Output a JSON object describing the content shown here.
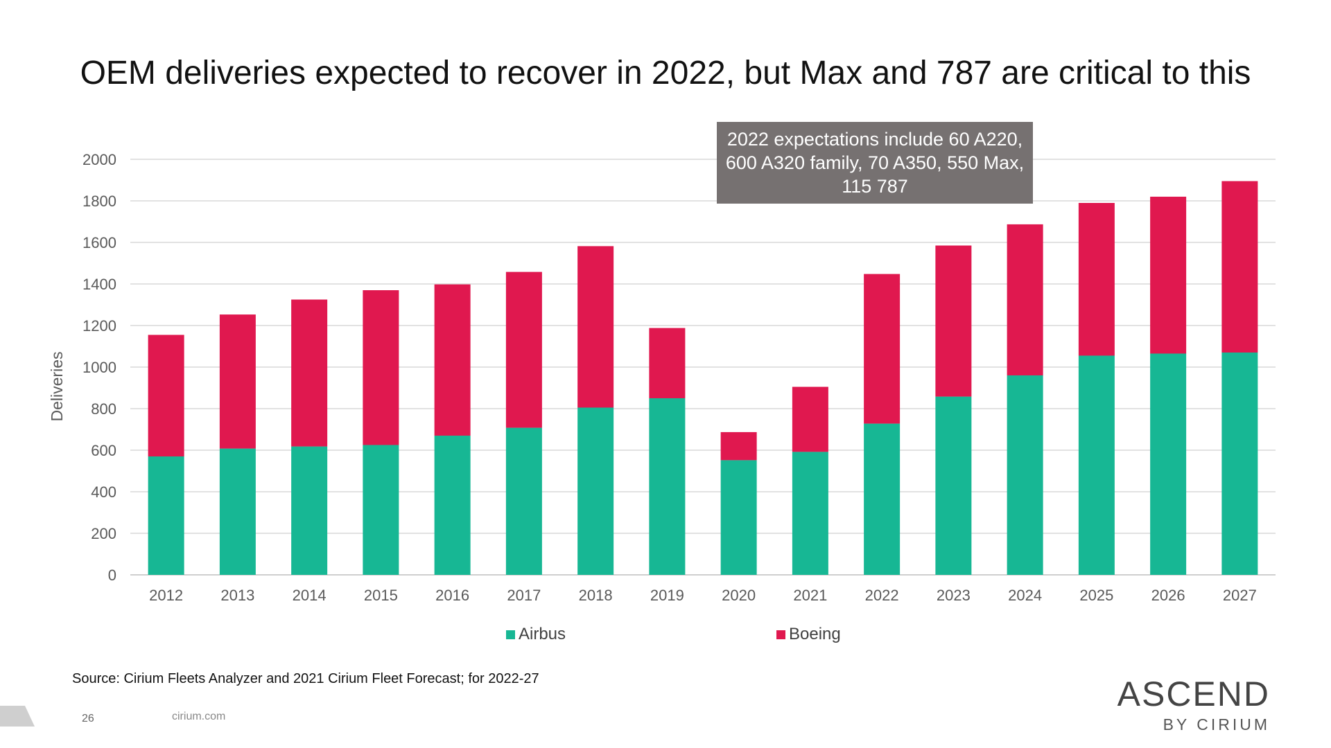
{
  "slide": {
    "title": "OEM deliveries expected to recover in 2022, but Max and 787 are critical to this",
    "source": "Source: Cirium Fleets Analyzer and 2021 Cirium Fleet Forecast; for 2022-27",
    "page_number": "26",
    "footer_url": "cirium.com",
    "logo_main": "ASCEND",
    "logo_sub": "BY CIRIUM"
  },
  "callout": {
    "text": "2022 expectations include 60 A220, 600 A320 family, 70 A350, 550 Max, 115 787",
    "color": "#767171"
  },
  "legend": {
    "items": [
      {
        "label": "Airbus",
        "color": "#17B794"
      },
      {
        "label": "Boeing",
        "color": "#E0184F"
      }
    ]
  },
  "chart_data": {
    "type": "bar",
    "stacked": true,
    "categories": [
      "2012",
      "2013",
      "2014",
      "2015",
      "2016",
      "2017",
      "2018",
      "2019",
      "2020",
      "2021",
      "2022",
      "2023",
      "2024",
      "2025",
      "2026",
      "2027"
    ],
    "series": [
      {
        "name": "Airbus",
        "color": "#17B794",
        "values": [
          570,
          608,
          618,
          625,
          670,
          708,
          805,
          850,
          552,
          592,
          728,
          858,
          960,
          1055,
          1065,
          1070
        ]
      },
      {
        "name": "Boeing",
        "color": "#E0184F",
        "values": [
          585,
          645,
          707,
          745,
          728,
          750,
          777,
          338,
          135,
          313,
          720,
          727,
          727,
          735,
          755,
          825
        ]
      }
    ],
    "ylabel": "Deliveries",
    "xlabel": "",
    "ylim": [
      0,
      2000
    ],
    "yticks": [
      0,
      200,
      400,
      600,
      800,
      1000,
      1200,
      1400,
      1600,
      1800,
      2000
    ],
    "grid": true,
    "legend_position": "bottom"
  }
}
